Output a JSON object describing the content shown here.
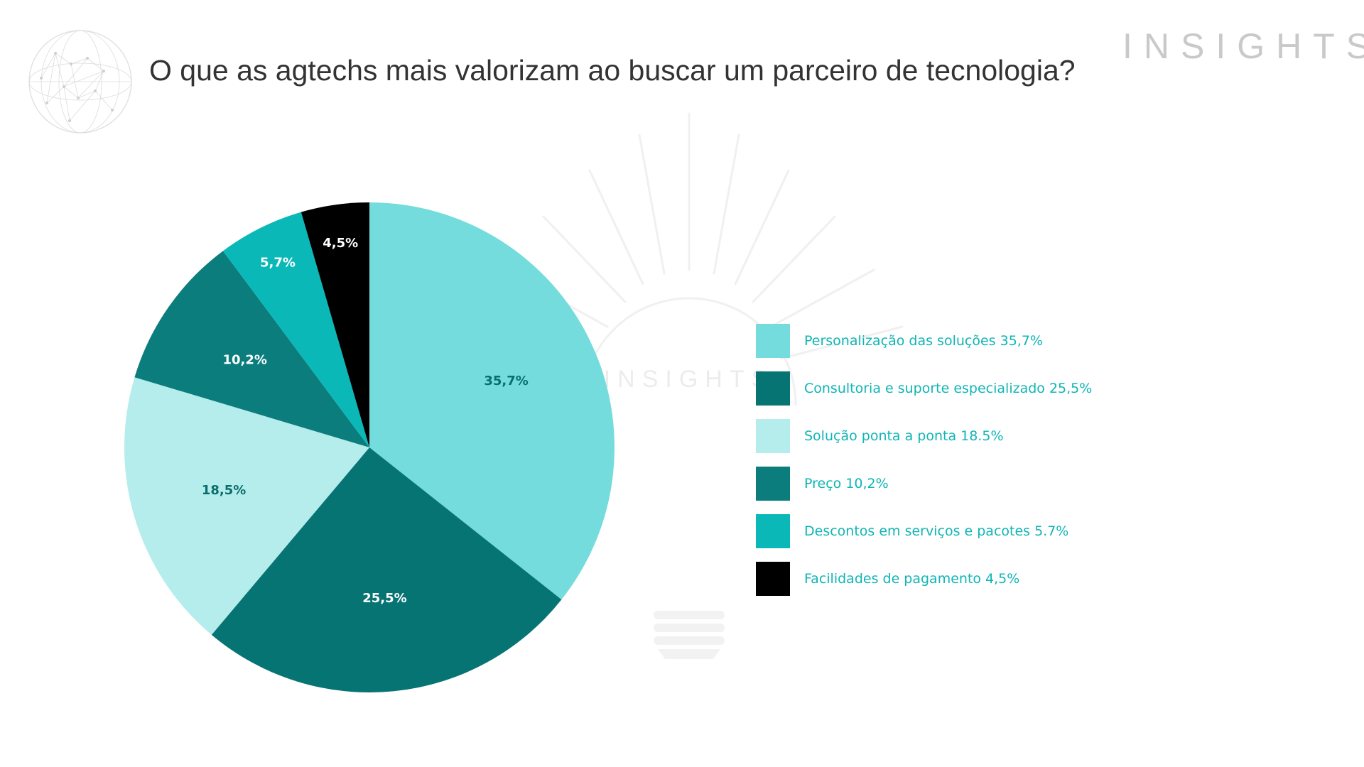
{
  "header": {
    "title": "O que as agtechs mais valorizam ao buscar um parceiro de tecnologia?",
    "brand": "INSIGHTS"
  },
  "watermark": {
    "text": "INSIGHTS"
  },
  "icons": {
    "logo": "globe-network-icon",
    "watermark": "lightbulb-icon"
  },
  "chart_data": {
    "type": "pie",
    "title": "O que as agtechs mais valorizam ao buscar um parceiro de tecnologia?",
    "legend_position": "right",
    "start_angle_deg": 0,
    "direction": "clockwise",
    "slices": [
      {
        "value": 35.7,
        "label": "35,7%",
        "legend": "Personalização das soluções 35,7%",
        "color": "#74dcdc",
        "label_color": "#0b6e6e"
      },
      {
        "value": 25.5,
        "label": "25,5%",
        "legend": "Consultoria e suporte especializado 25,5%",
        "color": "#077474",
        "label_color": "#ffffff"
      },
      {
        "value": 18.5,
        "label": "18,5%",
        "legend": "Solução ponta a ponta 18.5%",
        "color": "#b5ecec",
        "label_color": "#0b6e6e"
      },
      {
        "value": 10.2,
        "label": "10,2%",
        "legend": "Preço 10,2%",
        "color": "#0b7d7d",
        "label_color": "#ffffff"
      },
      {
        "value": 5.7,
        "label": "5,7%",
        "legend": "Descontos em serviços e pacotes 5.7%",
        "color": "#0bb8b8",
        "label_color": "#ffffff"
      },
      {
        "value": 4.5,
        "label": "4,5%",
        "legend": "Facilidades de pagamento 4,5%",
        "color": "#000000",
        "label_color": "#ffffff"
      }
    ]
  }
}
